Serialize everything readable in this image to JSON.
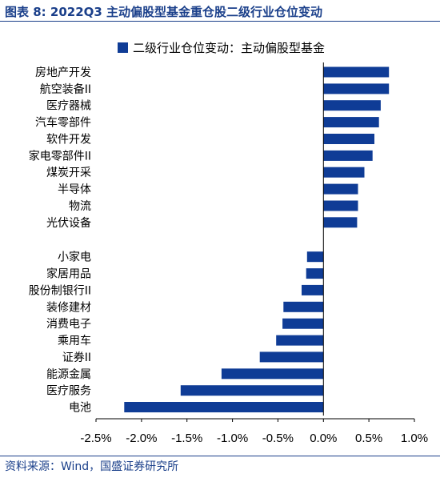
{
  "header": {
    "title": "图表 8:  2022Q3 主动偏股型基金重仓股二级行业仓位变动"
  },
  "footer": {
    "source": "资料来源：Wind，国盛证券研究所"
  },
  "colors": {
    "bar": "#0f3c96",
    "accent": "#1a3f8a"
  },
  "chart_data": {
    "type": "bar",
    "orientation": "horizontal",
    "legend": {
      "label": "二级行业仓位变动：主动偏股型基金",
      "placement": "top"
    },
    "categories": [
      "房地产开发",
      "航空装备II",
      "医疗器械",
      "汽车零部件",
      "软件开发",
      "家电零部件II",
      "煤炭开采",
      "半导体",
      "物流",
      "光伏设备",
      "小家电",
      "家居用品",
      "股份制银行II",
      "装修建材",
      "消费电子",
      "乘用车",
      "证券II",
      "能源金属",
      "医疗服务",
      "电池"
    ],
    "series": [
      {
        "name": "二级行业仓位变动：主动偏股型基金",
        "values": [
          0.72,
          0.72,
          0.63,
          0.61,
          0.56,
          0.54,
          0.45,
          0.38,
          0.38,
          0.37,
          -0.18,
          -0.19,
          -0.24,
          -0.44,
          -0.45,
          -0.52,
          -0.7,
          -1.12,
          -1.57,
          -2.19
        ]
      }
    ],
    "xlim": [
      -2.5,
      1.0
    ],
    "xticks": [
      -2.5,
      -2.0,
      -1.5,
      -1.0,
      -0.5,
      0.0,
      0.5,
      1.0
    ],
    "xtick_labels": [
      "-2.5%",
      "-2.0%",
      "-1.5%",
      "-1.0%",
      "-0.5%",
      "0.0%",
      "0.5%",
      "1.0%"
    ],
    "unit": "%",
    "grid": false
  }
}
